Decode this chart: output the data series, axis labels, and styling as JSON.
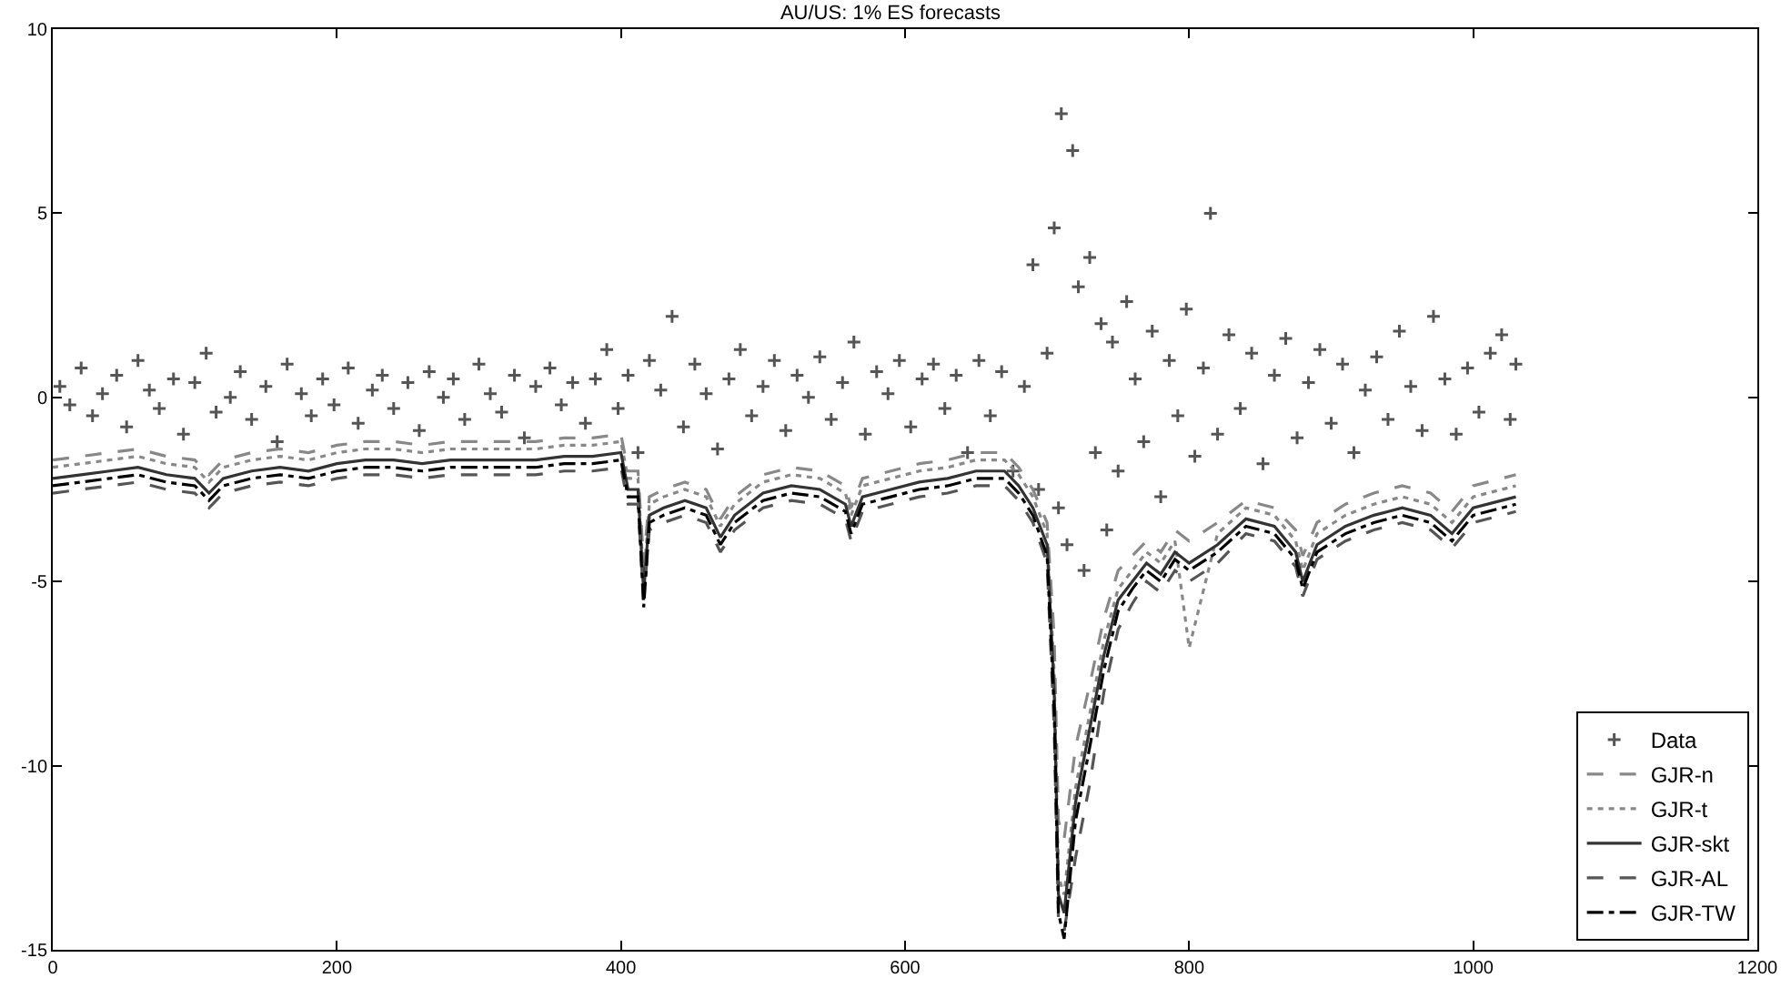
{
  "chart_data": {
    "type": "line",
    "title": "AU/US: 1% ES forecasts",
    "x": [
      0,
      20,
      40,
      60,
      80,
      100,
      110,
      120,
      140,
      160,
      180,
      200,
      220,
      240,
      260,
      280,
      300,
      320,
      340,
      360,
      380,
      400,
      405,
      412,
      416,
      420,
      430,
      445,
      460,
      470,
      480,
      500,
      520,
      540,
      558,
      562,
      570,
      590,
      610,
      630,
      650,
      670,
      680,
      690,
      700,
      705,
      708,
      712,
      720,
      730,
      740,
      750,
      760,
      770,
      780,
      790,
      800,
      820,
      840,
      860,
      875,
      880,
      890,
      910,
      930,
      950,
      970,
      985,
      1000,
      1020,
      1030
    ],
    "xlim": [
      0,
      1200
    ],
    "xticks": [
      0,
      200,
      400,
      600,
      800,
      1000,
      1200
    ],
    "ylim": [
      -15,
      10
    ],
    "yticks": [
      -15,
      -10,
      -5,
      0,
      5,
      10
    ],
    "grid": false,
    "legend": "bottom right",
    "series": [
      {
        "name": "Data",
        "type": "scatter",
        "marker": "cross",
        "color": "#555555",
        "x": [
          5,
          12,
          20,
          28,
          35,
          45,
          52,
          60,
          68,
          75,
          85,
          92,
          100,
          108,
          115,
          125,
          132,
          140,
          150,
          158,
          165,
          175,
          182,
          190,
          198,
          208,
          215,
          225,
          232,
          240,
          250,
          258,
          265,
          275,
          282,
          290,
          300,
          308,
          316,
          325,
          332,
          340,
          350,
          358,
          366,
          375,
          382,
          390,
          398,
          405,
          412,
          420,
          428,
          436,
          444,
          452,
          460,
          468,
          476,
          484,
          492,
          500,
          508,
          516,
          524,
          532,
          540,
          548,
          556,
          564,
          572,
          580,
          588,
          596,
          604,
          612,
          620,
          628,
          636,
          644,
          652,
          660,
          668,
          676,
          684,
          690,
          694,
          700,
          705,
          708,
          710,
          714,
          718,
          722,
          726,
          730,
          734,
          738,
          742,
          746,
          750,
          756,
          762,
          768,
          774,
          780,
          786,
          792,
          798,
          804,
          810,
          815,
          820,
          828,
          836,
          844,
          852,
          860,
          868,
          876,
          884,
          892,
          900,
          908,
          916,
          924,
          932,
          940,
          948,
          956,
          964,
          972,
          980,
          988,
          996,
          1004,
          1012,
          1020,
          1026,
          1030
        ],
        "values": [
          0.3,
          -0.2,
          0.8,
          -0.5,
          0.1,
          0.6,
          -0.8,
          1.0,
          0.2,
          -0.3,
          0.5,
          -1.0,
          0.4,
          1.2,
          -0.4,
          0.0,
          0.7,
          -0.6,
          0.3,
          -1.2,
          0.9,
          0.1,
          -0.5,
          0.5,
          -0.2,
          0.8,
          -0.7,
          0.2,
          0.6,
          -0.3,
          0.4,
          -0.9,
          0.7,
          0.0,
          0.5,
          -0.6,
          0.9,
          0.1,
          -0.4,
          0.6,
          -1.1,
          0.3,
          0.8,
          -0.2,
          0.4,
          -0.7,
          0.5,
          1.3,
          -0.3,
          0.6,
          -1.5,
          1.0,
          0.2,
          2.2,
          -0.8,
          0.9,
          0.1,
          -1.4,
          0.5,
          1.3,
          -0.5,
          0.3,
          1.0,
          -0.9,
          0.6,
          0.0,
          1.1,
          -0.6,
          0.4,
          1.5,
          -1.0,
          0.7,
          0.1,
          1.0,
          -0.8,
          0.5,
          0.9,
          -0.3,
          0.6,
          -1.5,
          1.0,
          -0.5,
          0.7,
          -2.0,
          0.3,
          3.6,
          -2.5,
          1.2,
          4.6,
          -3.0,
          7.7,
          -4.0,
          6.7,
          3.0,
          -4.7,
          3.8,
          -1.5,
          2.0,
          -3.6,
          1.5,
          -2.0,
          2.6,
          0.5,
          -1.2,
          1.8,
          -2.7,
          1.0,
          -0.5,
          2.4,
          -1.6,
          0.8,
          5.0,
          -1.0,
          1.7,
          -0.3,
          1.2,
          -1.8,
          0.6,
          1.6,
          -1.1,
          0.4,
          1.3,
          -0.7,
          0.9,
          -1.5,
          0.2,
          1.1,
          -0.6,
          1.8,
          0.3,
          -0.9,
          2.2,
          0.5,
          -1.0,
          0.8,
          -0.4,
          1.2,
          1.7,
          -0.6,
          0.9
        ]
      },
      {
        "name": "GJR-n",
        "line_style": "dashed",
        "color": "#888888",
        "values": [
          -1.7,
          -1.6,
          -1.5,
          -1.4,
          -1.6,
          -1.7,
          -2.1,
          -1.7,
          -1.5,
          -1.4,
          -1.5,
          -1.3,
          -1.2,
          -1.2,
          -1.3,
          -1.2,
          -1.2,
          -1.2,
          -1.2,
          -1.1,
          -1.1,
          -1.0,
          -2.0,
          -2.0,
          -4.5,
          -2.7,
          -2.5,
          -2.3,
          -2.5,
          -3.3,
          -2.7,
          -2.1,
          -1.9,
          -2.0,
          -2.4,
          -3.0,
          -2.2,
          -2.0,
          -1.8,
          -1.7,
          -1.5,
          -1.5,
          -1.9,
          -2.5,
          -3.4,
          -6.5,
          -11.5,
          -12.0,
          -9.5,
          -7.8,
          -6.0,
          -4.7,
          -4.3,
          -3.9,
          -4.2,
          -3.6,
          -3.9,
          -3.4,
          -2.8,
          -3.0,
          -3.6,
          -4.3,
          -3.4,
          -2.9,
          -2.6,
          -2.4,
          -2.6,
          -3.1,
          -2.4,
          -2.2,
          -2.1
        ]
      },
      {
        "name": "GJR-t",
        "line_style": "dotted",
        "color": "#888888",
        "values": [
          -1.9,
          -1.8,
          -1.7,
          -1.6,
          -1.8,
          -1.9,
          -2.3,
          -1.9,
          -1.7,
          -1.6,
          -1.7,
          -1.5,
          -1.4,
          -1.4,
          -1.5,
          -1.4,
          -1.4,
          -1.4,
          -1.4,
          -1.3,
          -1.3,
          -1.2,
          -2.2,
          -2.2,
          -5.0,
          -2.9,
          -2.7,
          -2.5,
          -2.7,
          -3.5,
          -2.9,
          -2.3,
          -2.1,
          -2.2,
          -2.6,
          -3.2,
          -2.4,
          -2.2,
          -2.0,
          -1.9,
          -1.7,
          -1.7,
          -2.1,
          -2.7,
          -3.7,
          -7.5,
          -13.0,
          -13.5,
          -10.6,
          -8.6,
          -6.6,
          -5.2,
          -4.7,
          -4.2,
          -4.5,
          -3.9,
          -6.8,
          -3.7,
          -3.0,
          -3.2,
          -3.9,
          -4.7,
          -3.7,
          -3.2,
          -2.9,
          -2.7,
          -2.9,
          -3.4,
          -2.7,
          -2.5,
          -2.4
        ]
      },
      {
        "name": "GJR-skt",
        "line_style": "solid",
        "color": "#333333",
        "values": [
          -2.2,
          -2.1,
          -2.0,
          -1.9,
          -2.1,
          -2.2,
          -2.6,
          -2.2,
          -2.0,
          -1.9,
          -2.0,
          -1.8,
          -1.7,
          -1.7,
          -1.8,
          -1.7,
          -1.7,
          -1.7,
          -1.7,
          -1.6,
          -1.6,
          -1.5,
          -2.5,
          -2.5,
          -5.3,
          -3.2,
          -3.0,
          -2.8,
          -3.0,
          -3.8,
          -3.2,
          -2.6,
          -2.4,
          -2.5,
          -2.9,
          -3.5,
          -2.7,
          -2.5,
          -2.3,
          -2.2,
          -2.0,
          -2.0,
          -2.4,
          -3.0,
          -4.0,
          -8.0,
          -13.5,
          -14.0,
          -11.0,
          -9.0,
          -7.0,
          -5.5,
          -5.0,
          -4.5,
          -4.8,
          -4.2,
          -4.5,
          -4.0,
          -3.3,
          -3.5,
          -4.2,
          -5.0,
          -4.0,
          -3.5,
          -3.2,
          -3.0,
          -3.2,
          -3.7,
          -3.0,
          -2.8,
          -2.7
        ]
      },
      {
        "name": "GJR-AL",
        "line_style": "dashed",
        "color": "#555555",
        "values": [
          -2.6,
          -2.5,
          -2.4,
          -2.3,
          -2.5,
          -2.6,
          -3.0,
          -2.6,
          -2.4,
          -2.3,
          -2.4,
          -2.2,
          -2.1,
          -2.1,
          -2.2,
          -2.1,
          -2.1,
          -2.1,
          -2.1,
          -2.0,
          -2.0,
          -1.9,
          -2.9,
          -2.9,
          -5.5,
          -3.6,
          -3.4,
          -3.2,
          -3.4,
          -4.2,
          -3.6,
          -3.0,
          -2.8,
          -2.9,
          -3.3,
          -3.9,
          -3.1,
          -2.9,
          -2.7,
          -2.6,
          -2.4,
          -2.4,
          -2.8,
          -3.4,
          -4.5,
          -9.0,
          -14.2,
          -14.5,
          -12.5,
          -10.5,
          -8.0,
          -6.3,
          -5.6,
          -5.0,
          -5.3,
          -4.7,
          -5.0,
          -4.5,
          -3.7,
          -3.9,
          -4.6,
          -5.4,
          -4.4,
          -3.9,
          -3.6,
          -3.4,
          -3.6,
          -4.1,
          -3.4,
          -3.2,
          -3.1
        ]
      },
      {
        "name": "GJR-TW",
        "line_style": "dashdot",
        "color": "#000000",
        "values": [
          -2.4,
          -2.3,
          -2.2,
          -2.1,
          -2.3,
          -2.4,
          -2.8,
          -2.4,
          -2.2,
          -2.1,
          -2.2,
          -2.0,
          -1.9,
          -1.9,
          -2.0,
          -1.9,
          -1.9,
          -1.9,
          -1.9,
          -1.8,
          -1.8,
          -1.7,
          -2.7,
          -2.7,
          -5.7,
          -3.4,
          -3.2,
          -3.0,
          -3.2,
          -4.0,
          -3.4,
          -2.8,
          -2.6,
          -2.7,
          -3.1,
          -3.7,
          -2.9,
          -2.7,
          -2.5,
          -2.4,
          -2.2,
          -2.2,
          -2.6,
          -3.2,
          -4.3,
          -8.5,
          -14.0,
          -14.7,
          -11.5,
          -9.5,
          -7.4,
          -5.8,
          -5.2,
          -4.7,
          -5.0,
          -4.4,
          -4.7,
          -4.2,
          -3.5,
          -3.7,
          -4.4,
          -5.2,
          -4.2,
          -3.7,
          -3.4,
          -3.2,
          -3.4,
          -3.9,
          -3.2,
          -3.0,
          -2.9
        ]
      }
    ]
  }
}
